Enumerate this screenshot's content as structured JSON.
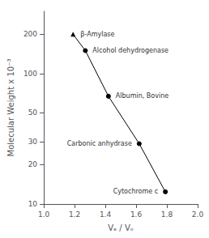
{
  "chart_data": {
    "type": "line",
    "x": [
      1.19,
      1.27,
      1.42,
      1.62,
      1.79
    ],
    "values": [
      200,
      150,
      67,
      29,
      12.4
    ],
    "point_labels": [
      "β-Amylase",
      "Alcohol dehydrogenase",
      "Albumin, Bovine",
      "Carbonic anhydrase",
      "Cytochrome c"
    ],
    "markers": [
      "triangle",
      "circle",
      "circle",
      "circle",
      "circle"
    ],
    "color": "#000000",
    "xlabel": "Vₑ / Vₒ",
    "ylabel": "Molecular Weight x 10⁻³",
    "log": "y",
    "xlim": [
      1.0,
      2.0
    ],
    "xticks": [
      {
        "value": 1.0,
        "label": "1.0"
      },
      1.2,
      1.4,
      1.6,
      1.8,
      {
        "value": 2.0,
        "label": "2.0"
      }
    ],
    "ylim": [
      10,
      300
    ],
    "yticks": [
      10,
      20,
      30,
      50,
      100,
      200
    ],
    "grid": false
  }
}
